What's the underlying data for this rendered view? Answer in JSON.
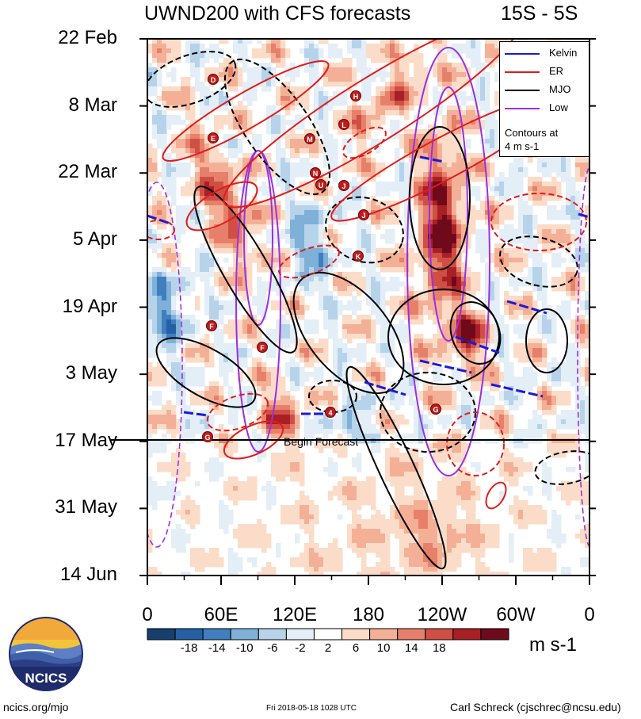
{
  "chart_data": {
    "type": "heatmap",
    "title": "UWND200 with CFS forecasts",
    "subtitle": "15S - 5S",
    "y_tick_labels": [
      "22 Feb",
      "8 Mar",
      "22 Mar",
      "5 Apr",
      "19 Apr",
      "3 May",
      "17 May",
      "31 May",
      "14 Jun"
    ],
    "x_tick_labels": [
      "0",
      "60E",
      "120E",
      "180",
      "120W",
      "60W",
      "0"
    ],
    "x_ticks_deg": [
      0,
      60,
      120,
      180,
      240,
      300,
      360
    ],
    "xlim": [
      0,
      360
    ],
    "colorbar": {
      "units": "m s-1",
      "tick_labels": [
        "-18",
        "-14",
        "-10",
        "-6",
        "-2",
        "2",
        "6",
        "10",
        "14",
        "18"
      ],
      "colors": [
        "#173f6e",
        "#2660a4",
        "#3f7fbf",
        "#7fb0d8",
        "#b6d3ea",
        "#e3eef7",
        "#ffffff",
        "#fbdcc8",
        "#f4b096",
        "#e6806a",
        "#cf4f44",
        "#a82026",
        "#6e0a1a"
      ]
    },
    "legend": [
      {
        "label": "Kelvin",
        "color": "#1a1adc"
      },
      {
        "label": "ER",
        "color": "#e11b1b"
      },
      {
        "label": "MJO",
        "color": "#000000"
      },
      {
        "label": "Low",
        "color": "#9b30e0"
      }
    ],
    "legend_note": [
      "Contours at",
      "4 m s-1"
    ],
    "annotation": "Begin Forecast",
    "storm_labels": [
      "D",
      "H",
      "E",
      "L",
      "M",
      "N",
      "U",
      "J",
      "J",
      "K",
      "F",
      "F",
      "G",
      "G",
      "4"
    ],
    "forecast_start": "17 May"
  },
  "logo": {
    "text": "NCICS"
  },
  "footer": {
    "left": "ncics.org/mjo",
    "center": "Fri 2018-05-18 1028 UTC",
    "right": "Carl Schreck (cjschrec@ncsu.edu)"
  }
}
